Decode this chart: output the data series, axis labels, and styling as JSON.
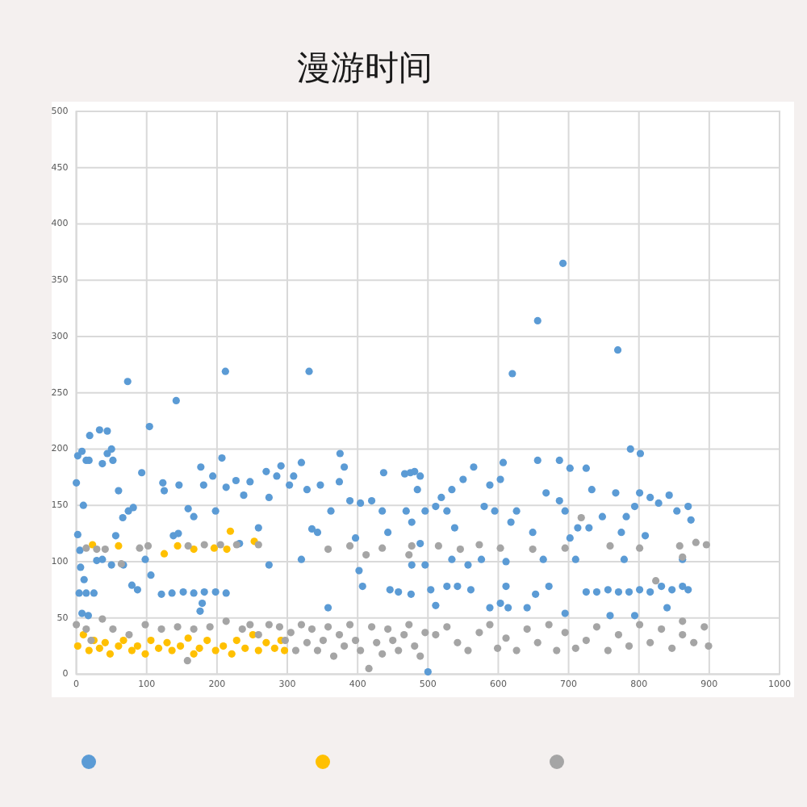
{
  "chart_data": {
    "type": "scatter",
    "title": "漫游时间",
    "xlim": [
      0,
      1000
    ],
    "ylim": [
      0,
      500
    ],
    "xticks": [
      0,
      100,
      200,
      300,
      400,
      500,
      600,
      700,
      800,
      900,
      1000
    ],
    "yticks": [
      0,
      50,
      100,
      150,
      200,
      250,
      300,
      350,
      400,
      450,
      500
    ],
    "grid": true,
    "marker": "circle",
    "series": [
      {
        "color": "#5b9bd5",
        "x": [
          0,
          2,
          8,
          10,
          14,
          18,
          19,
          33,
          44,
          37,
          44,
          50,
          52,
          104,
          60,
          2,
          5,
          6,
          11,
          4,
          14,
          25,
          8,
          17,
          29,
          37,
          50,
          56,
          66,
          74,
          81,
          93,
          67,
          79,
          87,
          98,
          106,
          121,
          136,
          152,
          167,
          182,
          198,
          213,
          123,
          125,
          138,
          145,
          146,
          159,
          167,
          177,
          181,
          179,
          176,
          194,
          198,
          207,
          213,
          227,
          232,
          238,
          247,
          259,
          270,
          274,
          274,
          285,
          291,
          303,
          309,
          320,
          320,
          328,
          335,
          343,
          347,
          358,
          362,
          374,
          375,
          381,
          389,
          397,
          404,
          402,
          407,
          420,
          435,
          437,
          443,
          446,
          458,
          467,
          475,
          485,
          489,
          496,
          500,
          73,
          142,
          212,
          331,
          692,
          656,
          770,
          620,
          481,
          489,
          469,
          477,
          511,
          519,
          527,
          534,
          538,
          550,
          565,
          557,
          561,
          477,
          496,
          504,
          511,
          476,
          580,
          588,
          595,
          607,
          603,
          618,
          626,
          588,
          603,
          614,
          611,
          641,
          656,
          668,
          687,
          687,
          695,
          702,
          702,
          710,
          695,
          725,
          729,
          733,
          725,
          740,
          756,
          771,
          786,
          801,
          816,
          832,
          847,
          862,
          870,
          767,
          775,
          779,
          794,
          801,
          809,
          816,
          828,
          843,
          854,
          870,
          874,
          862,
          840,
          759,
          794,
          782,
          748,
          713,
          649,
          664,
          672,
          653,
          611,
          576,
          534,
          527,
          542,
          788,
          802
        ],
        "values": [
          170,
          194,
          198,
          150,
          190,
          190,
          212,
          217,
          216,
          187,
          196,
          200,
          190,
          220,
          163,
          124,
          110,
          95,
          84,
          72,
          72,
          72,
          54,
          52,
          101,
          102,
          97,
          123,
          139,
          145,
          148,
          179,
          97,
          79,
          75,
          102,
          88,
          71,
          72,
          73,
          72,
          73,
          73,
          72,
          170,
          163,
          123,
          125,
          168,
          147,
          140,
          184,
          168,
          63,
          56,
          176,
          145,
          192,
          166,
          172,
          116,
          159,
          171,
          130,
          180,
          157,
          97,
          176,
          185,
          168,
          176,
          188,
          102,
          164,
          129,
          126,
          168,
          59,
          145,
          171,
          196,
          184,
          154,
          121,
          152,
          92,
          78,
          154,
          145,
          179,
          126,
          75,
          73,
          178,
          179,
          164,
          116,
          145,
          2,
          260,
          243,
          269,
          269,
          365,
          314,
          288,
          267,
          180,
          176,
          145,
          135,
          149,
          157,
          145,
          164,
          130,
          173,
          184,
          97,
          75,
          97,
          97,
          75,
          61,
          71,
          149,
          168,
          145,
          188,
          173,
          135,
          145,
          59,
          63,
          59,
          78,
          59,
          190,
          161,
          190,
          154,
          145,
          183,
          121,
          102,
          54,
          183,
          130,
          164,
          73,
          73,
          75,
          73,
          73,
          75,
          73,
          78,
          75,
          78,
          75,
          161,
          126,
          102,
          149,
          161,
          123,
          157,
          152,
          159,
          145,
          149,
          137,
          102,
          59,
          52,
          52,
          140,
          140,
          130,
          126,
          102,
          78,
          71,
          100,
          102,
          102,
          78,
          78,
          200,
          196
        ]
      },
      {
        "color": "#ffc000",
        "x": [
          2,
          10,
          18,
          25,
          33,
          41,
          48,
          60,
          67,
          79,
          87,
          98,
          106,
          117,
          129,
          136,
          148,
          159,
          167,
          175,
          186,
          198,
          209,
          221,
          228,
          240,
          251,
          259,
          270,
          282,
          291,
          296,
          23,
          60,
          125,
          144,
          167,
          196,
          214,
          219,
          253
        ],
        "values": [
          25,
          35,
          21,
          30,
          23,
          28,
          18,
          25,
          30,
          21,
          25,
          18,
          30,
          23,
          28,
          21,
          25,
          32,
          18,
          23,
          30,
          21,
          25,
          18,
          30,
          23,
          35,
          21,
          28,
          23,
          30,
          21,
          115,
          114,
          107,
          114,
          111,
          112,
          111,
          127,
          118
        ]
      },
      {
        "color": "#a5a5a5",
        "x": [
          0,
          14,
          21,
          37,
          52,
          75,
          98,
          121,
          144,
          158,
          167,
          190,
          213,
          236,
          247,
          259,
          274,
          289,
          297,
          305,
          312,
          320,
          328,
          335,
          343,
          351,
          358,
          366,
          374,
          381,
          389,
          397,
          404,
          416,
          420,
          427,
          435,
          443,
          450,
          458,
          466,
          473,
          481,
          489,
          496,
          511,
          527,
          542,
          557,
          573,
          588,
          599,
          611,
          626,
          641,
          656,
          672,
          683,
          695,
          710,
          725,
          740,
          756,
          771,
          786,
          801,
          816,
          832,
          847,
          862,
          878,
          893,
          899,
          862,
          41,
          90,
          102,
          29,
          14,
          64,
          159,
          182,
          205,
          228,
          259,
          358,
          389,
          412,
          435,
          473,
          477,
          515,
          546,
          573,
          603,
          649,
          695,
          718,
          759,
          801,
          858,
          881,
          896,
          824,
          862
        ],
        "values": [
          44,
          40,
          30,
          49,
          40,
          35,
          44,
          40,
          42,
          12,
          40,
          42,
          47,
          40,
          44,
          35,
          44,
          42,
          30,
          37,
          21,
          44,
          28,
          40,
          21,
          30,
          42,
          16,
          35,
          25,
          44,
          30,
          21,
          5,
          42,
          28,
          18,
          40,
          30,
          21,
          35,
          44,
          25,
          16,
          37,
          35,
          42,
          28,
          21,
          37,
          44,
          23,
          32,
          21,
          40,
          28,
          44,
          21,
          37,
          23,
          30,
          42,
          21,
          35,
          25,
          44,
          28,
          40,
          23,
          35,
          28,
          42,
          25,
          47,
          111,
          112,
          114,
          111,
          112,
          98,
          114,
          115,
          115,
          115,
          115,
          111,
          114,
          106,
          112,
          106,
          114,
          114,
          111,
          115,
          112,
          111,
          112,
          139,
          114,
          112,
          114,
          117,
          115,
          83,
          104
        ]
      }
    ]
  }
}
